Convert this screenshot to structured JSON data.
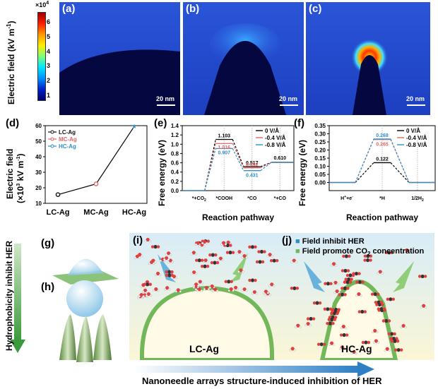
{
  "top_row": {
    "colorbar_ylabel": "Electric field (kV m",
    "colorbar_ylabel_sup": "-1",
    "colorbar_multiplier": "×10",
    "colorbar_multiplier_exp": "4",
    "colorbar_ticks": [
      "6",
      "5",
      "4",
      "3",
      "2",
      "1"
    ],
    "panels": [
      {
        "label": "(a)",
        "scale": "20 nm"
      },
      {
        "label": "(b)",
        "scale": "20 nm"
      },
      {
        "label": "(c)",
        "scale": "20 nm"
      }
    ]
  },
  "panel_d": {
    "label": "(d)",
    "ylabel_line1": "Electric field",
    "ylabel_line2": "(×10",
    "ylabel_line2_exp": "3",
    "ylabel_line2_tail": " kV m",
    "ylabel_line2_sup": "-1",
    "ylabel_line2_end": ")",
    "legend": [
      {
        "name": "LC-Ag",
        "color": "#111111"
      },
      {
        "name": "MC-Ag",
        "color": "#e06666"
      },
      {
        "name": "HC-Ag",
        "color": "#2f8fc4"
      }
    ]
  },
  "panel_e": {
    "label": "(e)",
    "ylabel": "Free energy (eV)",
    "xlabel": "Reaction pathway",
    "legend": [
      "0 V/Å",
      "-0.4 V/Å",
      "-0.8 V/Å"
    ],
    "value_labels": [
      "1.103",
      "1.016",
      "0.907",
      "0.517",
      "0.431",
      "0.492",
      "0.610"
    ],
    "step_labels": [
      "*+CO",
      "*COOH",
      "*CO",
      "*+CO"
    ],
    "step_subs": [
      "2",
      "",
      "",
      ""
    ]
  },
  "panel_f": {
    "label": "(f)",
    "ylabel": "Free energy (eV)",
    "xlabel": "Reaction pathway",
    "legend": [
      "0 V/Å",
      "-0.4 V/Å",
      "-0.8 V/Å"
    ],
    "value_labels": [
      "0.268",
      "0.265",
      "0.122"
    ],
    "step_labels": [
      "H",
      "*H",
      "1/2H"
    ],
    "step_label_h_tail": "+e",
    "step_label_h_sup": "+",
    "step_label_e_sup": "-",
    "step_label_last_sub": "2"
  },
  "bottom": {
    "left_vertical_text": "Hydrophobicity inhibit HER",
    "panel_labels": [
      "(g)",
      "(h)",
      "(i)",
      "(j)"
    ],
    "lc_label": "LC-Ag",
    "hc_label": "HC-Ag",
    "note_line1": "Field inhibit HER",
    "note_line2": "Field promote CO",
    "note_line2_sub": "2",
    "note_line2_tail": " concentration",
    "bottom_caption": "Nanoneedle arrays structure-induced inhibition of HER"
  },
  "chart_data": [
    {
      "type": "line",
      "categories": [
        "LC-Ag",
        "MC-Ag",
        "HC-Ag"
      ],
      "values": [
        15.6,
        22.5,
        59.5
      ],
      "ylabel": "Electric field (×10^3 kV m^-1)",
      "ylim": [
        10,
        60
      ],
      "yticks": [
        10,
        20,
        30,
        40,
        50,
        60
      ],
      "series": [
        {
          "name": "LC-Ag"
        },
        {
          "name": "MC-Ag"
        },
        {
          "name": "HC-Ag"
        }
      ]
    },
    {
      "type": "line",
      "xlabel": "Reaction pathway",
      "ylabel": "Free energy (eV)",
      "ylim": [
        0,
        1.4
      ],
      "yticks": [
        0.0,
        0.2,
        0.4,
        0.6,
        0.8,
        1.0,
        1.2,
        1.4
      ],
      "categories": [
        "*+CO2",
        "*COOH",
        "*CO",
        "*+CO"
      ],
      "series": [
        {
          "name": "0 V/Å",
          "values": [
            0,
            1.103,
            0.517,
            0.61
          ]
        },
        {
          "name": "-0.4 V/Å",
          "values": [
            0,
            1.016,
            0.492,
            0.61
          ]
        },
        {
          "name": "-0.8 V/Å",
          "values": [
            0,
            0.907,
            0.431,
            0.61
          ]
        }
      ]
    },
    {
      "type": "line",
      "xlabel": "Reaction pathway",
      "ylabel": "Free energy (eV)",
      "ylim": [
        -0.05,
        0.35
      ],
      "yticks": [
        0.0,
        0.05,
        0.1,
        0.15,
        0.2,
        0.25,
        0.3,
        0.35
      ],
      "categories": [
        "H+ + e-",
        "*H",
        "1/2H2"
      ],
      "series": [
        {
          "name": "0 V/Å",
          "values": [
            0,
            0.122,
            0
          ]
        },
        {
          "name": "-0.4 V/Å",
          "values": [
            0,
            0.265,
            0
          ]
        },
        {
          "name": "-0.8 V/Å",
          "values": [
            0,
            0.268,
            0
          ]
        }
      ]
    }
  ]
}
